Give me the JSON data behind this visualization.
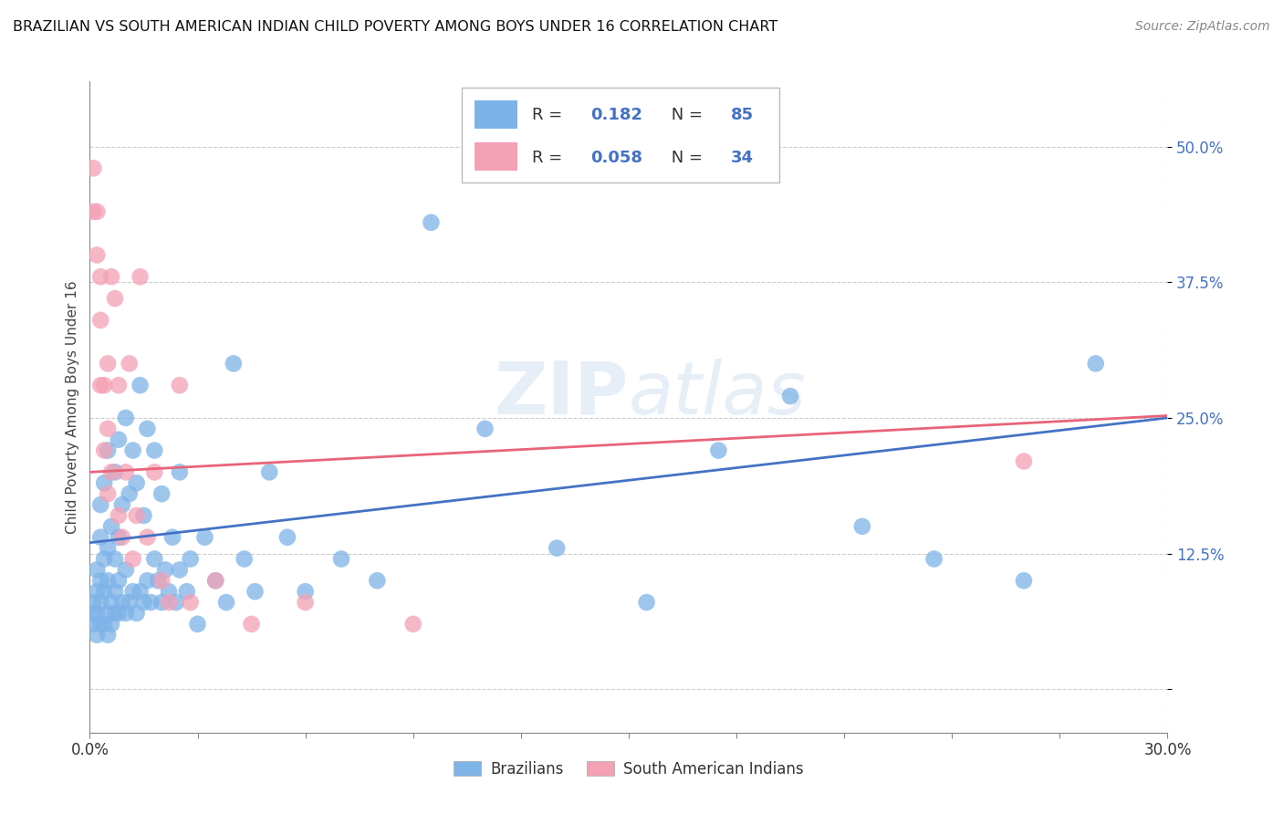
{
  "title": "BRAZILIAN VS SOUTH AMERICAN INDIAN CHILD POVERTY AMONG BOYS UNDER 16 CORRELATION CHART",
  "source": "Source: ZipAtlas.com",
  "ylabel": "Child Poverty Among Boys Under 16",
  "xlim": [
    0.0,
    0.3
  ],
  "ylim": [
    -0.04,
    0.56
  ],
  "ytick_positions": [
    0.0,
    0.125,
    0.25,
    0.375,
    0.5
  ],
  "ytick_labels": [
    "",
    "12.5%",
    "25.0%",
    "37.5%",
    "50.0%"
  ],
  "blue_R": 0.182,
  "blue_N": 85,
  "pink_R": 0.058,
  "pink_N": 34,
  "blue_color": "#7EB3E8",
  "pink_color": "#F4A0B5",
  "blue_line_color": "#4472C4",
  "pink_line_color": "#E8647A",
  "stat_color": "#4472C4",
  "watermark": "ZIPatlas",
  "legend_label_blue": "Brazilians",
  "legend_label_pink": "South American Indians",
  "blue_line_x0": 0.0,
  "blue_line_y0": 0.135,
  "blue_line_x1": 0.3,
  "blue_line_y1": 0.25,
  "pink_line_x0": 0.0,
  "pink_line_y0": 0.2,
  "pink_line_x1": 0.3,
  "pink_line_y1": 0.252,
  "blue_x": [
    0.001,
    0.001,
    0.001,
    0.002,
    0.002,
    0.002,
    0.002,
    0.003,
    0.003,
    0.003,
    0.003,
    0.003,
    0.004,
    0.004,
    0.004,
    0.004,
    0.005,
    0.005,
    0.005,
    0.005,
    0.005,
    0.006,
    0.006,
    0.006,
    0.007,
    0.007,
    0.007,
    0.007,
    0.008,
    0.008,
    0.008,
    0.008,
    0.009,
    0.009,
    0.01,
    0.01,
    0.01,
    0.011,
    0.011,
    0.012,
    0.012,
    0.013,
    0.013,
    0.014,
    0.014,
    0.015,
    0.015,
    0.016,
    0.016,
    0.017,
    0.018,
    0.018,
    0.019,
    0.02,
    0.02,
    0.021,
    0.022,
    0.023,
    0.024,
    0.025,
    0.025,
    0.027,
    0.028,
    0.03,
    0.032,
    0.035,
    0.038,
    0.04,
    0.043,
    0.046,
    0.05,
    0.055,
    0.06,
    0.07,
    0.08,
    0.095,
    0.11,
    0.13,
    0.155,
    0.175,
    0.195,
    0.215,
    0.235,
    0.26,
    0.28
  ],
  "blue_y": [
    0.06,
    0.07,
    0.08,
    0.05,
    0.07,
    0.09,
    0.11,
    0.06,
    0.08,
    0.1,
    0.14,
    0.17,
    0.06,
    0.09,
    0.12,
    0.19,
    0.05,
    0.07,
    0.1,
    0.13,
    0.22,
    0.06,
    0.08,
    0.15,
    0.07,
    0.09,
    0.12,
    0.2,
    0.07,
    0.1,
    0.14,
    0.23,
    0.08,
    0.17,
    0.07,
    0.11,
    0.25,
    0.08,
    0.18,
    0.09,
    0.22,
    0.07,
    0.19,
    0.09,
    0.28,
    0.08,
    0.16,
    0.1,
    0.24,
    0.08,
    0.12,
    0.22,
    0.1,
    0.08,
    0.18,
    0.11,
    0.09,
    0.14,
    0.08,
    0.11,
    0.2,
    0.09,
    0.12,
    0.06,
    0.14,
    0.1,
    0.08,
    0.3,
    0.12,
    0.09,
    0.2,
    0.14,
    0.09,
    0.12,
    0.1,
    0.43,
    0.24,
    0.13,
    0.08,
    0.22,
    0.27,
    0.15,
    0.12,
    0.1,
    0.3
  ],
  "pink_x": [
    0.001,
    0.001,
    0.002,
    0.002,
    0.003,
    0.003,
    0.003,
    0.004,
    0.004,
    0.005,
    0.005,
    0.005,
    0.006,
    0.006,
    0.007,
    0.008,
    0.008,
    0.009,
    0.01,
    0.011,
    0.012,
    0.013,
    0.014,
    0.016,
    0.018,
    0.02,
    0.022,
    0.025,
    0.028,
    0.035,
    0.045,
    0.06,
    0.09,
    0.26
  ],
  "pink_y": [
    0.44,
    0.48,
    0.4,
    0.44,
    0.38,
    0.28,
    0.34,
    0.22,
    0.28,
    0.18,
    0.24,
    0.3,
    0.2,
    0.38,
    0.36,
    0.16,
    0.28,
    0.14,
    0.2,
    0.3,
    0.12,
    0.16,
    0.38,
    0.14,
    0.2,
    0.1,
    0.08,
    0.28,
    0.08,
    0.1,
    0.06,
    0.08,
    0.06,
    0.21
  ]
}
